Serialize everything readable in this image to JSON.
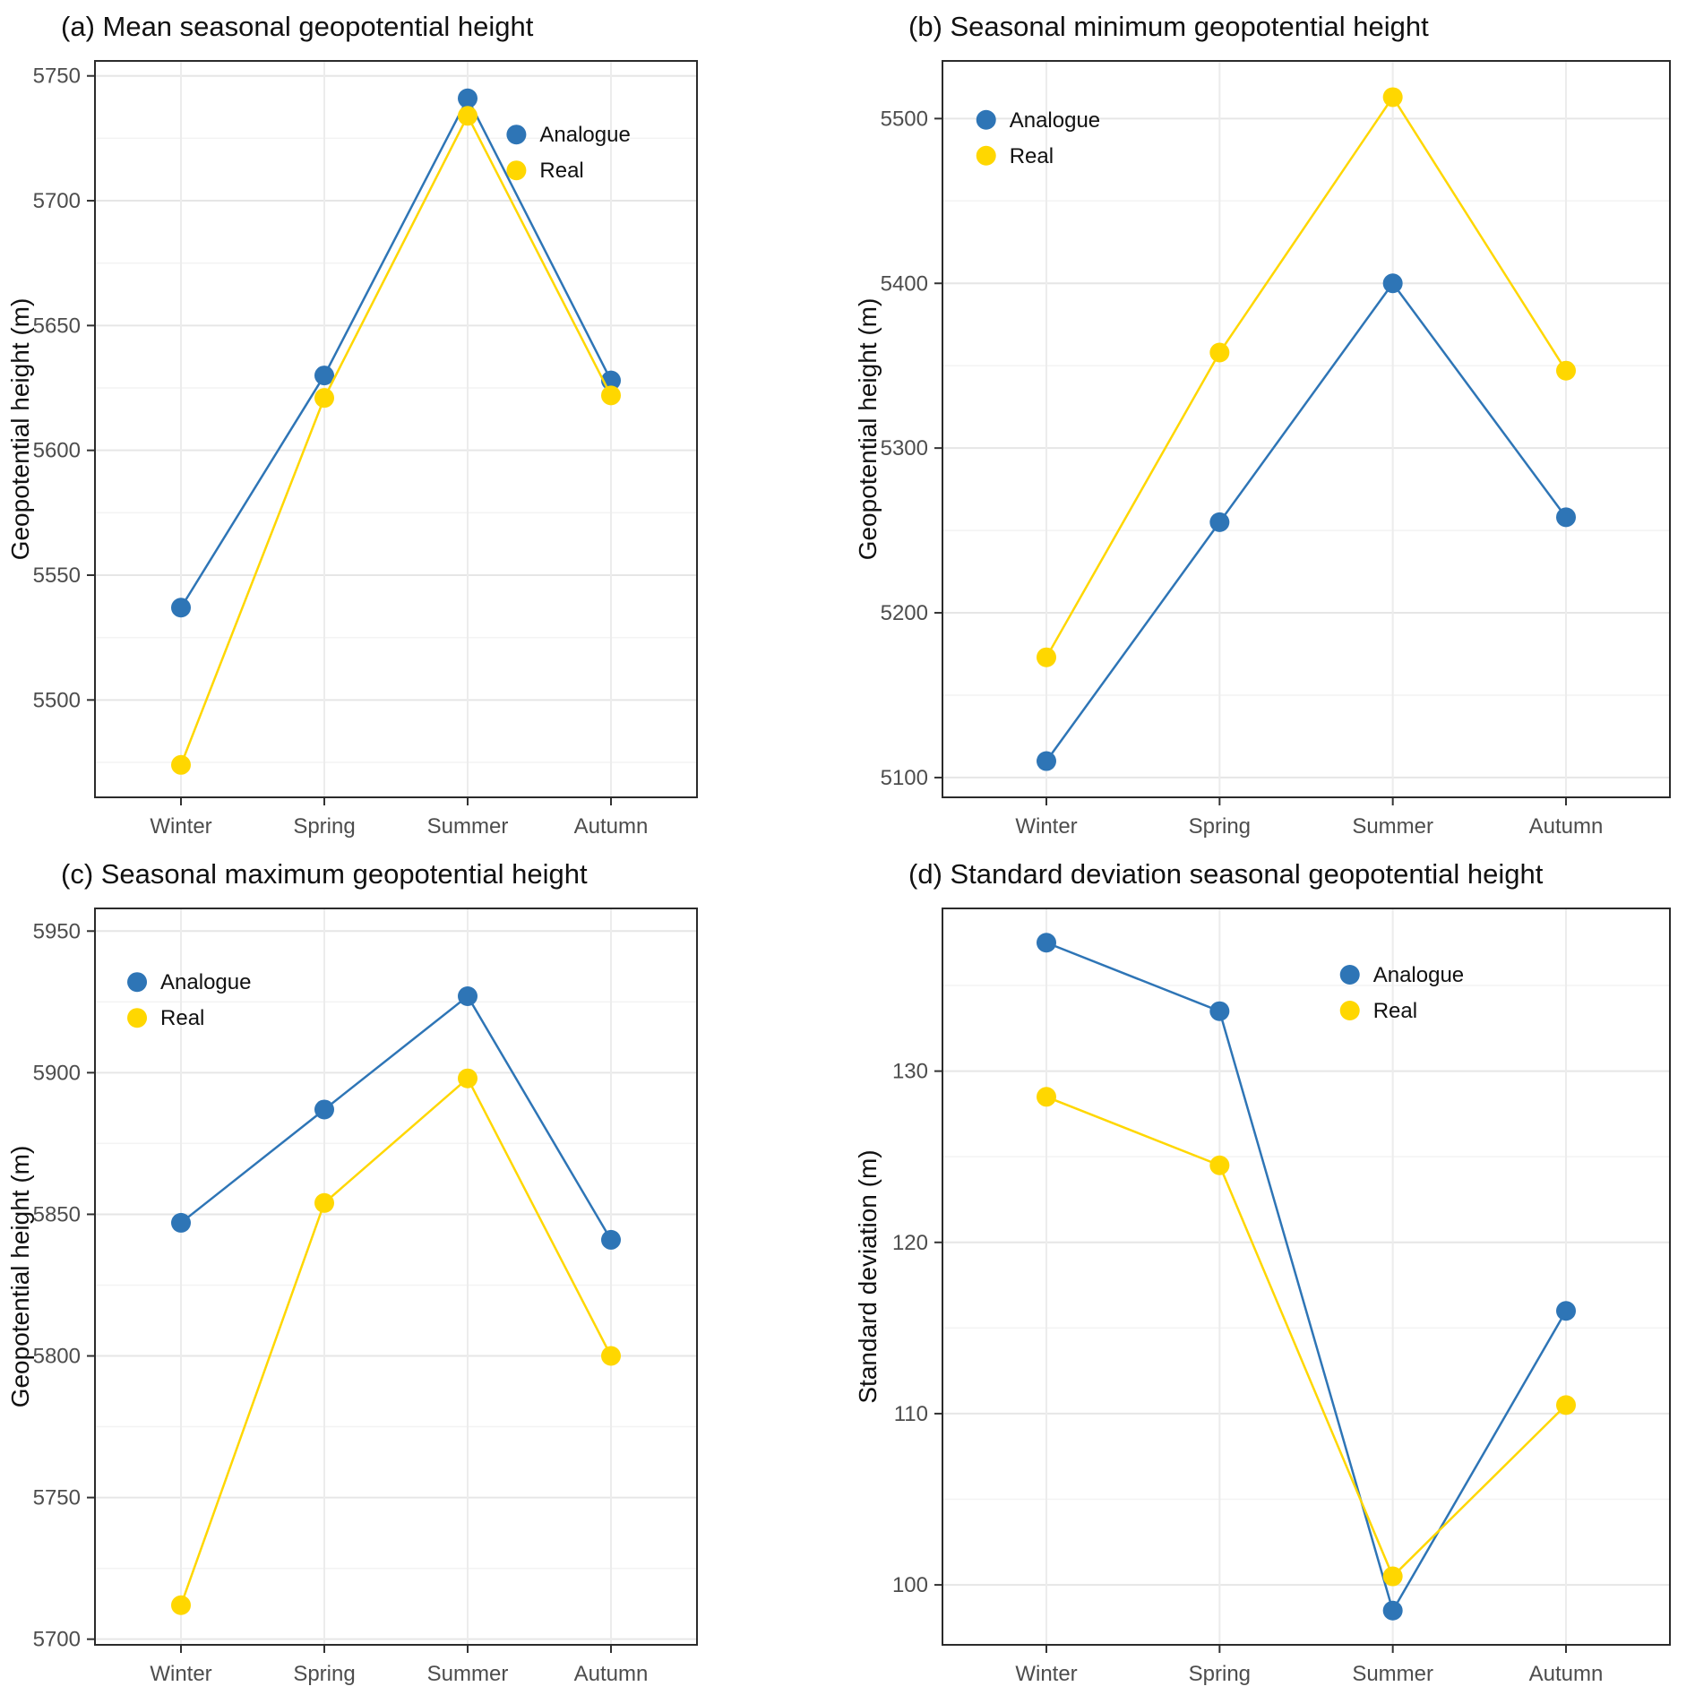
{
  "figure": {
    "legend_labels": [
      "Analogue",
      "Real"
    ],
    "colors": {
      "analogue": "#2E75B6",
      "real": "#FFD700"
    }
  },
  "chart_data": [
    {
      "panel": "a",
      "type": "line",
      "title": "(a) Mean seasonal geopotential height",
      "xlabel": "",
      "ylabel": "Geopotential height (m)",
      "categories": [
        "Winter",
        "Spring",
        "Summer",
        "Autumn"
      ],
      "ylim": [
        5461,
        5756
      ],
      "yticks": [
        5500,
        5550,
        5600,
        5650,
        5700,
        5750
      ],
      "grid": "major+minor",
      "legend_position": "inside-top-right",
      "legend_xy": [
        0.7,
        0.1
      ],
      "series": [
        {
          "name": "Analogue",
          "color": "#2E75B6",
          "values": [
            5537,
            5630,
            5741,
            5628
          ]
        },
        {
          "name": "Real",
          "color": "#FFD700",
          "values": [
            5474,
            5621,
            5734,
            5622
          ]
        }
      ]
    },
    {
      "panel": "b",
      "type": "line",
      "title": "(b) Seasonal minimum geopotential height",
      "xlabel": "",
      "ylabel": "Geopotential height (m)",
      "categories": [
        "Winter",
        "Spring",
        "Summer",
        "Autumn"
      ],
      "ylim": [
        5088,
        5535
      ],
      "yticks": [
        5100,
        5200,
        5300,
        5400,
        5500
      ],
      "grid": "major+minor",
      "legend_position": "inside-top-left",
      "legend_xy": [
        0.06,
        0.08
      ],
      "series": [
        {
          "name": "Analogue",
          "color": "#2E75B6",
          "values": [
            5110,
            5255,
            5400,
            5258
          ]
        },
        {
          "name": "Real",
          "color": "#FFD700",
          "values": [
            5173,
            5358,
            5513,
            5347
          ]
        }
      ]
    },
    {
      "panel": "c",
      "type": "line",
      "title": "(c) Seasonal maximum geopotential height",
      "xlabel": "",
      "ylabel": "Geopotential height (m)",
      "categories": [
        "Winter",
        "Spring",
        "Summer",
        "Autumn"
      ],
      "ylim": [
        5698,
        5958
      ],
      "yticks": [
        5700,
        5750,
        5800,
        5850,
        5900,
        5950
      ],
      "grid": "major+minor",
      "legend_position": "inside-top-left",
      "legend_xy": [
        0.07,
        0.1
      ],
      "series": [
        {
          "name": "Analogue",
          "color": "#2E75B6",
          "values": [
            5847,
            5887,
            5927,
            5841
          ]
        },
        {
          "name": "Real",
          "color": "#FFD700",
          "values": [
            5712,
            5854,
            5898,
            5800
          ]
        }
      ]
    },
    {
      "panel": "d",
      "type": "line",
      "title": "(d) Standard deviation seasonal geopotential height",
      "xlabel": "",
      "ylabel": "Standard deviation (m)",
      "categories": [
        "Winter",
        "Spring",
        "Summer",
        "Autumn"
      ],
      "ylim": [
        96.5,
        139.5
      ],
      "yticks": [
        100,
        110,
        120,
        130
      ],
      "grid": "major+minor",
      "legend_position": "inside-top-right",
      "legend_xy": [
        0.56,
        0.09
      ],
      "series": [
        {
          "name": "Analogue",
          "color": "#2E75B6",
          "values": [
            137.5,
            133.5,
            98.5,
            116
          ]
        },
        {
          "name": "Real",
          "color": "#FFD700",
          "values": [
            128.5,
            124.5,
            100.5,
            110.5
          ]
        }
      ]
    }
  ]
}
